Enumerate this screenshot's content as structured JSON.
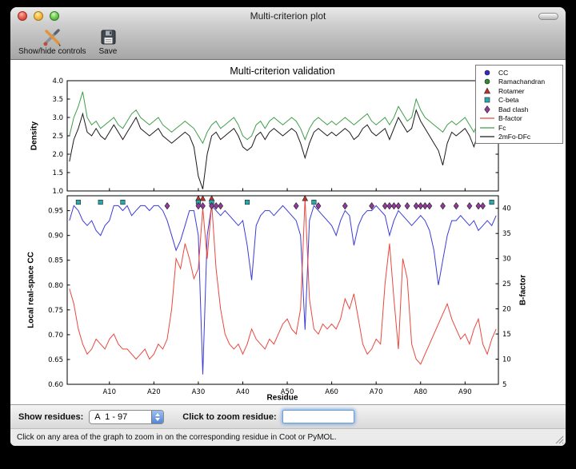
{
  "window": {
    "title": "Multi-criterion plot",
    "toolbar": {
      "items": [
        {
          "label": "Show/hide controls"
        },
        {
          "label": "Save"
        }
      ]
    }
  },
  "controls": {
    "show_residues_label": "Show residues:",
    "chain_range_value": "A  1 - 97",
    "zoom_label": "Click to zoom residue:",
    "zoom_input_value": ""
  },
  "status_bar": {
    "text": "Click on any area of the graph to zoom in on the corresponding residue in Coot or PyMOL."
  },
  "chart_data": {
    "type": "line",
    "title": "Multi-criterion validation",
    "xlabel": "Residue",
    "x_range": [
      0.5,
      97.5
    ],
    "x_ticks": [
      {
        "pos": 10,
        "label": "A10"
      },
      {
        "pos": 20,
        "label": "A20"
      },
      {
        "pos": 30,
        "label": "A30"
      },
      {
        "pos": 40,
        "label": "A40"
      },
      {
        "pos": 50,
        "label": "A50"
      },
      {
        "pos": 60,
        "label": "A60"
      },
      {
        "pos": 70,
        "label": "A70"
      },
      {
        "pos": 80,
        "label": "A80"
      },
      {
        "pos": 90,
        "label": "A90"
      }
    ],
    "top_plot": {
      "ylabel": "Density",
      "ylim": [
        1.0,
        4.0
      ],
      "yticks": [
        1.0,
        1.5,
        2.0,
        2.5,
        3.0,
        3.5,
        4.0
      ],
      "series": [
        {
          "name": "Fc",
          "color": "#3f9e4a",
          "values": [
            2.5,
            3.0,
            3.3,
            3.7,
            3.0,
            2.8,
            2.9,
            2.7,
            2.8,
            2.9,
            3.0,
            2.8,
            2.7,
            2.9,
            3.1,
            3.2,
            3.0,
            2.9,
            2.8,
            2.9,
            3.0,
            2.8,
            2.7,
            2.6,
            2.7,
            2.8,
            2.9,
            2.8,
            2.7,
            2.5,
            2.3,
            2.6,
            2.8,
            2.9,
            2.7,
            2.8,
            2.9,
            3.0,
            2.8,
            2.5,
            2.4,
            2.5,
            2.8,
            2.9,
            2.7,
            2.9,
            3.0,
            2.9,
            2.8,
            2.9,
            3.0,
            2.9,
            2.7,
            2.4,
            2.7,
            2.9,
            3.0,
            2.9,
            2.8,
            2.9,
            2.8,
            2.9,
            3.0,
            2.9,
            2.8,
            2.9,
            3.0,
            3.1,
            2.9,
            2.8,
            2.9,
            3.0,
            2.8,
            3.0,
            3.3,
            3.1,
            2.9,
            3.0,
            3.5,
            3.2,
            3.0,
            2.9,
            2.8,
            2.7,
            2.6,
            2.8,
            2.9,
            2.8,
            2.9,
            3.0,
            2.8,
            2.6,
            2.9,
            3.1,
            2.8,
            3.3,
            3.0
          ]
        },
        {
          "name": "2mFo-DFc",
          "color": "#1a1a1a",
          "values": [
            1.8,
            2.4,
            2.7,
            3.1,
            2.6,
            2.5,
            2.7,
            2.5,
            2.4,
            2.6,
            2.8,
            2.6,
            2.4,
            2.6,
            2.8,
            3.0,
            2.7,
            2.6,
            2.5,
            2.6,
            2.7,
            2.5,
            2.4,
            2.3,
            2.4,
            2.5,
            2.6,
            2.5,
            2.2,
            1.4,
            1.05,
            2.0,
            2.5,
            2.6,
            2.4,
            2.5,
            2.6,
            2.7,
            2.5,
            2.2,
            2.1,
            2.2,
            2.5,
            2.6,
            2.4,
            2.6,
            2.7,
            2.6,
            2.5,
            2.6,
            2.7,
            2.6,
            2.3,
            1.9,
            2.3,
            2.6,
            2.7,
            2.6,
            2.5,
            2.6,
            2.5,
            2.6,
            2.7,
            2.6,
            2.4,
            2.5,
            2.7,
            2.8,
            2.6,
            2.5,
            2.6,
            2.7,
            2.4,
            2.7,
            3.0,
            2.8,
            2.6,
            2.7,
            3.2,
            2.9,
            2.7,
            2.5,
            2.3,
            2.1,
            1.7,
            2.3,
            2.6,
            2.5,
            2.6,
            2.7,
            2.5,
            2.2,
            2.6,
            2.9,
            2.5,
            3.1,
            2.7
          ]
        }
      ]
    },
    "bottom_plot": {
      "ylabel_left": "Local real-space CC",
      "ylim_left": [
        0.6,
        0.98
      ],
      "yticks_left": [
        0.6,
        0.65,
        0.7,
        0.75,
        0.8,
        0.85,
        0.9,
        0.95
      ],
      "ylabel_right": "B-factor",
      "ylim_right": [
        5,
        42.5
      ],
      "yticks_right": [
        5,
        10,
        15,
        20,
        25,
        30,
        35,
        40
      ],
      "series": [
        {
          "name": "CC",
          "axis": "left",
          "color": "#3b3bd8",
          "values": [
            0.93,
            0.96,
            0.95,
            0.93,
            0.92,
            0.93,
            0.91,
            0.9,
            0.92,
            0.93,
            0.96,
            0.96,
            0.95,
            0.96,
            0.94,
            0.95,
            0.96,
            0.96,
            0.95,
            0.96,
            0.96,
            0.95,
            0.93,
            0.9,
            0.87,
            0.89,
            0.92,
            0.95,
            0.95,
            0.9,
            0.62,
            0.9,
            0.96,
            0.95,
            0.94,
            0.95,
            0.94,
            0.93,
            0.92,
            0.93,
            0.88,
            0.81,
            0.92,
            0.94,
            0.95,
            0.95,
            0.94,
            0.95,
            0.96,
            0.95,
            0.94,
            0.93,
            0.9,
            0.71,
            0.93,
            0.96,
            0.95,
            0.94,
            0.93,
            0.92,
            0.9,
            0.93,
            0.95,
            0.94,
            0.88,
            0.92,
            0.94,
            0.95,
            0.95,
            0.96,
            0.95,
            0.94,
            0.9,
            0.93,
            0.95,
            0.94,
            0.93,
            0.92,
            0.93,
            0.94,
            0.93,
            0.91,
            0.87,
            0.8,
            0.85,
            0.9,
            0.93,
            0.93,
            0.94,
            0.93,
            0.92,
            0.93,
            0.91,
            0.92,
            0.93,
            0.92,
            0.94
          ]
        },
        {
          "name": "B-factor",
          "axis": "right",
          "color": "#e8483f",
          "values": [
            24,
            21,
            16,
            13,
            11,
            12,
            14,
            13,
            12,
            14,
            15,
            13,
            12,
            12,
            11,
            10,
            11,
            12,
            10,
            11,
            13,
            12,
            14,
            20,
            30,
            28,
            33,
            30,
            26,
            28,
            40,
            30,
            41,
            28,
            20,
            15,
            13,
            12,
            13,
            11,
            13,
            16,
            14,
            13,
            12,
            14,
            13,
            15,
            17,
            18,
            16,
            15,
            20,
            42,
            22,
            16,
            15,
            17,
            16,
            17,
            16,
            18,
            22,
            20,
            23,
            18,
            13,
            11,
            12,
            14,
            13,
            25,
            33,
            22,
            12,
            30,
            26,
            13,
            10,
            9,
            11,
            13,
            15,
            17,
            19,
            21,
            18,
            16,
            14,
            15,
            13,
            16,
            18,
            13,
            11,
            14,
            16
          ]
        }
      ],
      "markers": [
        {
          "name": "Rotamer",
          "shape": "triangle",
          "color": "#c03028",
          "y": 0.9745,
          "residues": [
            30,
            31,
            33,
            54
          ]
        },
        {
          "name": "Ramachandran",
          "shape": "circle",
          "color": "#2e8b2e",
          "y": 0.9745,
          "residues": []
        },
        {
          "name": "C-beta",
          "shape": "square",
          "color": "#2aa8ae",
          "y": 0.967,
          "residues": [
            3,
            8,
            13,
            30,
            33,
            41,
            56,
            96
          ]
        },
        {
          "name": "Bad clash",
          "shape": "diamond",
          "color": "#93399a",
          "y": 0.9595,
          "residues": [
            23,
            30,
            31,
            33,
            34,
            35,
            52,
            57,
            63,
            69,
            72,
            73,
            74,
            75,
            77,
            79,
            80,
            81,
            82,
            85,
            88,
            91,
            93,
            94
          ]
        }
      ]
    },
    "legend": {
      "items": [
        {
          "label": "CC",
          "type": "marker",
          "shape": "circle",
          "color": "#2a2ad0"
        },
        {
          "label": "Ramachandran",
          "type": "marker",
          "shape": "circle",
          "color": "#2e8b2e"
        },
        {
          "label": "Rotamer",
          "type": "marker",
          "shape": "triangle",
          "color": "#c03028"
        },
        {
          "label": "C-beta",
          "type": "marker",
          "shape": "square",
          "color": "#2aa8ae"
        },
        {
          "label": "Bad clash",
          "type": "marker",
          "shape": "diamond",
          "color": "#93399a"
        },
        {
          "label": "B-factor",
          "type": "line",
          "color": "#e8483f"
        },
        {
          "label": "Fc",
          "type": "line",
          "color": "#3f9e4a"
        },
        {
          "label": "2mFo-DFc",
          "type": "line",
          "color": "#1a1a1a"
        }
      ]
    }
  }
}
